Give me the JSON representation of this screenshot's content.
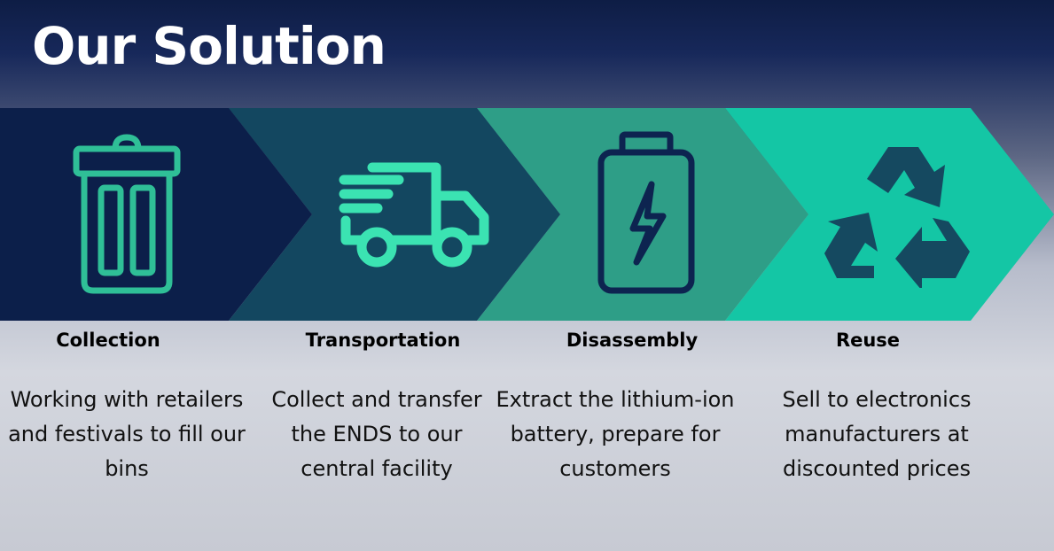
{
  "title": "Our Solution",
  "colors": {
    "step1": "#0c1f4a",
    "step2": "#134760",
    "step3": "#2e9e87",
    "step4": "#14c6a5",
    "icon_green": "#2fbf97",
    "icon_mint": "#3be3b2",
    "icon_navy": "#0d2450",
    "icon_teal_dark": "#154960"
  },
  "steps": [
    {
      "label": "Collection",
      "icon": "trash-bin-icon",
      "description": "Working with retailers and festivals to fill our bins"
    },
    {
      "label": "Transportation",
      "icon": "delivery-truck-icon",
      "description": "Collect and transfer the ENDS to our central facility"
    },
    {
      "label": "Disassembly",
      "icon": "battery-charging-icon",
      "description": "Extract the lithium-ion battery, prepare for customers"
    },
    {
      "label": "Reuse",
      "icon": "recycle-icon",
      "description": "Sell to electronics manufacturers at discounted prices"
    }
  ]
}
